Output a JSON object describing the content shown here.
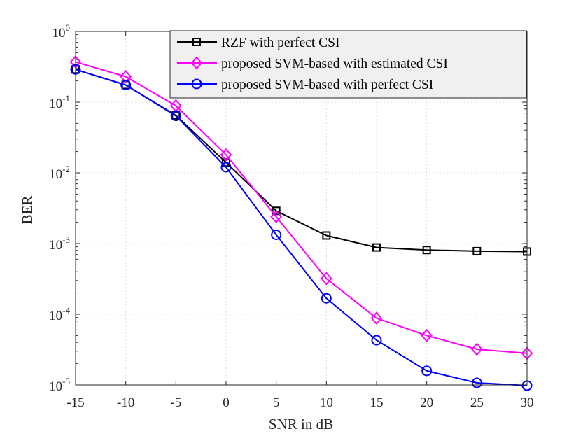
{
  "chart_data": {
    "type": "line",
    "title": "",
    "xlabel": "SNR in dB",
    "ylabel": "BER",
    "x": [
      -15,
      -10,
      -5,
      0,
      5,
      10,
      15,
      20,
      25,
      30
    ],
    "xlim": [
      -15,
      30
    ],
    "ylim": [
      1e-05,
      1
    ],
    "yscale": "log",
    "grid": true,
    "legend_position": "top-right",
    "xticks": [
      -15,
      -10,
      -5,
      0,
      5,
      10,
      15,
      20,
      25,
      30
    ],
    "xtick_labels": [
      "-15",
      "-10",
      "-5",
      "0",
      "5",
      "10",
      "15",
      "20",
      "25",
      "30"
    ],
    "yticks": [
      {
        "value": 1,
        "base": "10",
        "exp": "0"
      },
      {
        "value": 0.1,
        "base": "10",
        "exp": "-1"
      },
      {
        "value": 0.01,
        "base": "10",
        "exp": "-2"
      },
      {
        "value": 0.001,
        "base": "10",
        "exp": "-3"
      },
      {
        "value": 0.0001,
        "base": "10",
        "exp": "-4"
      },
      {
        "value": 1e-05,
        "base": "10",
        "exp": "-5"
      }
    ],
    "series": [
      {
        "name": "RZF with perfect CSI",
        "color": "#000000",
        "marker": "square",
        "values": [
          0.29,
          0.175,
          0.065,
          0.014,
          0.0029,
          0.0013,
          0.00088,
          0.00081,
          0.00078,
          0.00077
        ]
      },
      {
        "name": "proposed SVM-based with estimated CSI",
        "color": "#ff00ff",
        "marker": "diamond",
        "values": [
          0.37,
          0.23,
          0.089,
          0.018,
          0.0024,
          0.00032,
          8.8e-05,
          5e-05,
          3.2e-05,
          2.8e-05
        ]
      },
      {
        "name": "proposed SVM-based with perfect CSI",
        "color": "#0000ff",
        "marker": "circle",
        "values": [
          0.29,
          0.175,
          0.064,
          0.012,
          0.00133,
          0.000168,
          4.3e-05,
          1.58e-05,
          1.07e-05,
          9.8e-06
        ]
      }
    ]
  }
}
